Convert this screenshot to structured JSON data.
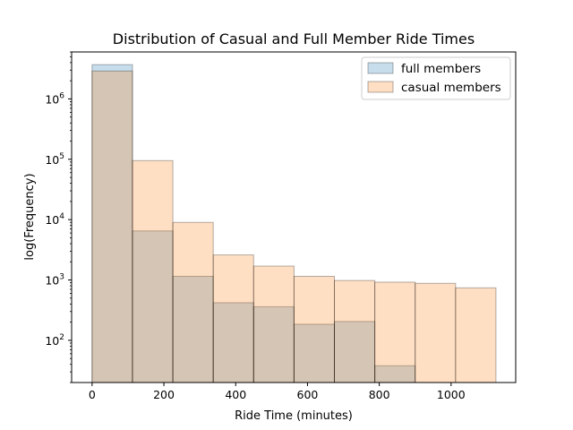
{
  "chart_data": {
    "type": "histogram",
    "title": "Distribution of Casual and Full Member Ride Times",
    "xlabel": "Ride Time (minutes)",
    "ylabel": "log(Frequency)",
    "y_scale": "log",
    "xlim": [
      -57,
      1180
    ],
    "ylim": [
      20,
      6000000
    ],
    "x_ticks": [
      0,
      200,
      400,
      600,
      800,
      1000
    ],
    "y_ticks": [
      100,
      1000,
      10000,
      100000,
      1000000
    ],
    "y_tick_labels": [
      {
        "base": "10",
        "exp": "2"
      },
      {
        "base": "10",
        "exp": "3"
      },
      {
        "base": "10",
        "exp": "4"
      },
      {
        "base": "10",
        "exp": "5"
      },
      {
        "base": "10",
        "exp": "6"
      }
    ],
    "bin_edges": [
      0,
      112.5,
      225,
      337.5,
      450,
      562.5,
      675,
      787.5,
      900,
      1012.5,
      1125
    ],
    "legend_position": "upper right",
    "series": [
      {
        "name": "full members",
        "color": "#1f77b4",
        "alpha": 0.25,
        "values": [
          3700000,
          6500,
          1150,
          420,
          360,
          185,
          205,
          38,
          null,
          null
        ]
      },
      {
        "name": "casual members",
        "color": "#ff7f0e",
        "alpha": 0.25,
        "values": [
          2900000,
          95000,
          9000,
          2600,
          1700,
          1150,
          980,
          920,
          880,
          740
        ]
      }
    ]
  }
}
